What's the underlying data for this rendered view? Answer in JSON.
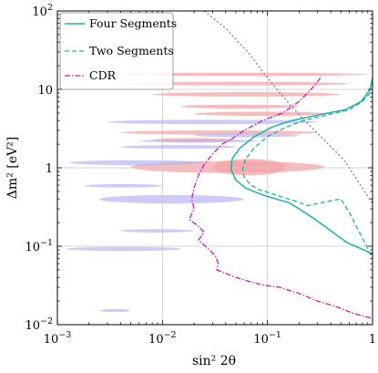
{
  "chart_data": {
    "type": "line",
    "xscale": "log",
    "yscale": "log",
    "xlim": [
      0.001,
      1
    ],
    "ylim": [
      0.01,
      100
    ],
    "xlabel": "sin² 2θ",
    "ylabel": "Δm² [eV²]",
    "grid": true,
    "legend_position": "top-left",
    "x_ticks": [
      {
        "value": 0.001,
        "base": "10",
        "exp": "−3"
      },
      {
        "value": 0.01,
        "base": "10",
        "exp": "−2"
      },
      {
        "value": 0.1,
        "base": "10",
        "exp": "−1"
      },
      {
        "value": 1,
        "base": "1",
        "exp": ""
      }
    ],
    "y_ticks": [
      {
        "value": 0.01,
        "base": "10",
        "exp": "−2"
      },
      {
        "value": 0.1,
        "base": "10",
        "exp": "−1"
      },
      {
        "value": 1,
        "base": "1",
        "exp": ""
      },
      {
        "value": 10,
        "base": "10",
        "exp": ""
      },
      {
        "value": 100,
        "base": "10",
        "exp": "2"
      }
    ],
    "series": [
      {
        "name": "Four Segments",
        "style": "solid",
        "color": "#1ab0ab",
        "x": [
          1,
          0.95,
          0.78,
          0.55,
          0.38,
          0.26,
          0.17,
          0.11,
          0.075,
          0.055,
          0.046,
          0.045,
          0.05,
          0.062,
          0.08,
          0.1,
          0.13,
          0.16,
          0.2,
          0.27,
          0.35,
          0.45,
          0.58,
          0.75,
          1
        ],
        "y": [
          14,
          10,
          7,
          5.5,
          5,
          4.5,
          4,
          3.3,
          2.5,
          1.8,
          1.3,
          0.95,
          0.7,
          0.55,
          0.48,
          0.43,
          0.39,
          0.36,
          0.3,
          0.23,
          0.18,
          0.14,
          0.11,
          0.095,
          0.08
        ]
      },
      {
        "name": "Two Segments",
        "style": "dashed",
        "color": "#1ab0ab",
        "x": [
          0.95,
          0.8,
          0.6,
          0.45,
          0.32,
          0.22,
          0.15,
          0.1,
          0.075,
          0.062,
          0.058,
          0.06,
          0.07,
          0.085,
          0.11,
          0.14,
          0.18,
          0.24,
          0.3,
          0.4,
          0.5,
          0.62,
          0.75,
          0.88,
          1
        ],
        "y": [
          9,
          7,
          5.5,
          5,
          4.5,
          4,
          3.3,
          2.5,
          1.8,
          1.3,
          0.95,
          0.75,
          0.6,
          0.52,
          0.47,
          0.42,
          0.38,
          0.33,
          0.35,
          0.38,
          0.4,
          0.25,
          0.15,
          0.1,
          0.07
        ]
      },
      {
        "name": "CDR",
        "style": "dashdot",
        "color": "#c21db8",
        "x": [
          0.32,
          0.26,
          0.2,
          0.14,
          0.09,
          0.06,
          0.045,
          0.037,
          0.03,
          0.025,
          0.022,
          0.02,
          0.019,
          0.02,
          0.018,
          0.022,
          0.025,
          0.022,
          0.028,
          0.032,
          0.034,
          0.033,
          0.04,
          0.05,
          0.065,
          0.09,
          0.13,
          0.2,
          0.3,
          0.45,
          0.65,
          1
        ],
        "y": [
          14,
          10,
          7,
          5,
          4,
          3,
          2.3,
          2,
          1.5,
          1.1,
          0.8,
          0.55,
          0.4,
          0.3,
          0.22,
          0.18,
          0.15,
          0.12,
          0.09,
          0.075,
          0.06,
          0.05,
          0.045,
          0.04,
          0.036,
          0.032,
          0.03,
          0.025,
          0.02,
          0.017,
          0.014,
          0.012
        ]
      },
      {
        "name": "",
        "style": "dotted",
        "color": "#808080",
        "x": [
          0.025,
          0.04,
          0.065,
          0.11,
          0.17,
          0.25,
          0.38,
          0.55,
          0.8,
          1
        ],
        "y": [
          100,
          60,
          30,
          12,
          6,
          3.5,
          2,
          1.2,
          0.55,
          0.35
        ]
      }
    ],
    "allowed_regions": [
      {
        "color": "#f7a0a0",
        "x": [
          0.005,
          0.35
        ],
        "y": [
          0.86,
          1.22
        ]
      },
      {
        "color": "#f7a0a0",
        "x": [
          0.03,
          0.15
        ],
        "y": [
          0.8,
          1.3
        ]
      },
      {
        "color": "#f7a0a0",
        "x": [
          0.003,
          0.9
        ],
        "y": [
          14.8,
          16.3
        ]
      },
      {
        "color": "#f7a0a0",
        "x": [
          0.004,
          0.6
        ],
        "y": [
          11.2,
          12.5
        ]
      },
      {
        "color": "#f7a0a0",
        "x": [
          0.008,
          0.5
        ],
        "y": [
          8.1,
          9.2
        ]
      },
      {
        "color": "#f7a0a0",
        "x": [
          0.015,
          0.2
        ],
        "y": [
          5.7,
          6.4
        ]
      },
      {
        "color": "#f7a0a0",
        "x": [
          0.02,
          0.4
        ],
        "y": [
          4.6,
          5.2
        ]
      },
      {
        "color": "#f7a0a0",
        "x": [
          0.004,
          0.3
        ],
        "y": [
          2.65,
          3.0
        ]
      },
      {
        "color": "#f7a0a0",
        "x": [
          0.008,
          0.05
        ],
        "y": [
          2.1,
          2.4
        ]
      },
      {
        "color": "#b6b6f3",
        "x": [
          0.0013,
          0.025
        ],
        "y": [
          1.08,
          1.25
        ]
      },
      {
        "color": "#b6b6f3",
        "x": [
          0.003,
          0.3
        ],
        "y": [
          3.6,
          4.1
        ]
      },
      {
        "color": "#b6b6f3",
        "x": [
          0.02,
          0.2
        ],
        "y": [
          2.45,
          2.75
        ]
      },
      {
        "color": "#b6b6f3",
        "x": [
          0.006,
          0.08
        ],
        "y": [
          2.1,
          2.3
        ]
      },
      {
        "color": "#b6b6f3",
        "x": [
          0.004,
          0.05
        ],
        "y": [
          1.75,
          1.95
        ]
      },
      {
        "color": "#b6b6f3",
        "x": [
          0.0025,
          0.06
        ],
        "y": [
          0.35,
          0.45
        ]
      },
      {
        "color": "#b6b6f3",
        "x": [
          0.0018,
          0.01
        ],
        "y": [
          0.56,
          0.62
        ]
      },
      {
        "color": "#b6b6f3",
        "x": [
          0.004,
          0.02
        ],
        "y": [
          0.15,
          0.165
        ]
      },
      {
        "color": "#b6b6f3",
        "x": [
          0.0012,
          0.015
        ],
        "y": [
          0.087,
          0.098
        ]
      },
      {
        "color": "#b6b6f3",
        "x": [
          0.0025,
          0.005
        ],
        "y": [
          0.0145,
          0.0158
        ]
      }
    ]
  }
}
